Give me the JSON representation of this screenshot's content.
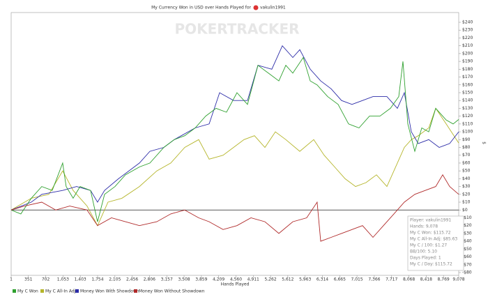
{
  "chart_data": {
    "type": "line",
    "title": "My Currency Won in USD over Hands Played for",
    "player_name": "vakulin1991",
    "watermark": "POKERTRACKER",
    "x_label": "Hands Played",
    "y_label": "$",
    "xlim": [
      1,
      9078
    ],
    "xticks": [
      1,
      351,
      702,
      {
        "value": 1053,
        "label": "1,053"
      },
      {
        "value": 1403,
        "label": "1,403"
      },
      {
        "value": 1754,
        "label": "1,754"
      },
      {
        "value": 2105,
        "label": "2,105"
      },
      {
        "value": 2456,
        "label": "2,456"
      },
      {
        "value": 2806,
        "label": "2,806"
      },
      {
        "value": 3157,
        "label": "3,157"
      },
      {
        "value": 3508,
        "label": "3,508"
      },
      {
        "value": 3859,
        "label": "3,859"
      },
      {
        "value": 4209,
        "label": "4,209"
      },
      {
        "value": 4560,
        "label": "4,560"
      },
      {
        "value": 4911,
        "label": "4,911"
      },
      {
        "value": 5262,
        "label": "5,262"
      },
      {
        "value": 5612,
        "label": "5,612"
      },
      {
        "value": 5963,
        "label": "5,963"
      },
      {
        "value": 6314,
        "label": "6,314"
      },
      {
        "value": 6665,
        "label": "6,665"
      },
      {
        "value": 7015,
        "label": "7,015"
      },
      {
        "value": 7366,
        "label": "7,366"
      },
      {
        "value": 7717,
        "label": "7,717"
      },
      {
        "value": 8068,
        "label": "8,068"
      },
      {
        "value": 8418,
        "label": "8,418"
      },
      {
        "value": 8769,
        "label": "8,769"
      },
      {
        "value": 9078,
        "label": "9,078"
      }
    ],
    "ylim": [
      -80,
      240
    ],
    "yticks": [
      {
        "value": -80,
        "label": "-$80"
      },
      {
        "value": -70,
        "label": "-$70"
      },
      {
        "value": -60,
        "label": "-$60"
      },
      {
        "value": -50,
        "label": "-$50"
      },
      {
        "value": -40,
        "label": "-$40"
      },
      {
        "value": -30,
        "label": "-$30"
      },
      {
        "value": -20,
        "label": "-$20"
      },
      {
        "value": -10,
        "label": "-$10"
      },
      {
        "value": 0,
        "label": "$0"
      },
      {
        "value": 10,
        "label": "$10"
      },
      {
        "value": 20,
        "label": "$20"
      },
      {
        "value": 30,
        "label": "$30"
      },
      {
        "value": 40,
        "label": "$40"
      },
      {
        "value": 50,
        "label": "$50"
      },
      {
        "value": 60,
        "label": "$60"
      },
      {
        "value": 70,
        "label": "$70"
      },
      {
        "value": 80,
        "label": "$80"
      },
      {
        "value": 90,
        "label": "$90"
      },
      {
        "value": 100,
        "label": "$100"
      },
      {
        "value": 110,
        "label": "$110"
      },
      {
        "value": 120,
        "label": "$120"
      },
      {
        "value": 130,
        "label": "$130"
      },
      {
        "value": 140,
        "label": "$140"
      },
      {
        "value": 150,
        "label": "$150"
      },
      {
        "value": 160,
        "label": "$160"
      },
      {
        "value": 170,
        "label": "$170"
      },
      {
        "value": 180,
        "label": "$180"
      },
      {
        "value": 190,
        "label": "$190"
      },
      {
        "value": 200,
        "label": "$200"
      },
      {
        "value": 210,
        "label": "$210"
      },
      {
        "value": 220,
        "label": "$220"
      },
      {
        "value": 230,
        "label": "$230"
      },
      {
        "value": 240,
        "label": "$240"
      }
    ],
    "series": [
      {
        "name": "My C Won",
        "color": "#2ea02e",
        "x": [
          1,
          198,
          410,
          622,
          834,
          1046,
          1117,
          1258,
          1400,
          1612,
          1753,
          1895,
          2107,
          2319,
          2602,
          2814,
          3097,
          3309,
          3521,
          3733,
          3945,
          4157,
          4369,
          4581,
          4794,
          5006,
          5218,
          5430,
          5571,
          5713,
          5925,
          6066,
          6207,
          6420,
          6632,
          6844,
          7056,
          7268,
          7480,
          7692,
          7862,
          7947,
          8046,
          8187,
          8329,
          8470,
          8611,
          8823,
          8965,
          9078
        ],
        "values": [
          0,
          -5,
          15,
          30,
          25,
          60,
          30,
          15,
          30,
          25,
          -15,
          20,
          30,
          45,
          55,
          60,
          80,
          90,
          95,
          105,
          120,
          130,
          125,
          150,
          135,
          185,
          175,
          165,
          185,
          175,
          195,
          165,
          160,
          145,
          135,
          110,
          105,
          120,
          120,
          130,
          145,
          190,
          110,
          75,
          105,
          100,
          130,
          115,
          110,
          115.72
        ]
      },
      {
        "name": "My C All-In Adj",
        "color": "#b5b52a",
        "x": [
          1,
          410,
          764,
          1046,
          1258,
          1541,
          1753,
          1965,
          2248,
          2602,
          2955,
          3238,
          3521,
          3804,
          4016,
          4299,
          4511,
          4723,
          4935,
          5147,
          5359,
          5571,
          5854,
          6137,
          6349,
          6561,
          6773,
          6985,
          7197,
          7409,
          7622,
          7834,
          7975,
          8116,
          8258,
          8470,
          8611,
          8823,
          9078
        ],
        "values": [
          0,
          15,
          20,
          50,
          25,
          5,
          -20,
          10,
          15,
          30,
          50,
          60,
          80,
          90,
          65,
          70,
          80,
          90,
          95,
          80,
          100,
          90,
          75,
          90,
          70,
          55,
          40,
          30,
          35,
          45,
          30,
          60,
          80,
          90,
          95,
          105,
          130,
          110,
          85.63
        ]
      },
      {
        "name": "Money Won With Showdown",
        "color": "#2c2ca8",
        "x": [
          1,
          410,
          622,
          1046,
          1329,
          1612,
          1753,
          1895,
          2178,
          2602,
          2814,
          3097,
          3309,
          3733,
          4016,
          4228,
          4511,
          4794,
          5006,
          5288,
          5501,
          5713,
          5854,
          6066,
          6278,
          6490,
          6702,
          6914,
          7127,
          7339,
          7622,
          7834,
          7975,
          8116,
          8258,
          8470,
          8682,
          8894,
          9078
        ],
        "values": [
          0,
          10,
          20,
          25,
          30,
          25,
          10,
          25,
          40,
          60,
          75,
          80,
          90,
          105,
          110,
          150,
          140,
          140,
          185,
          180,
          210,
          195,
          205,
          180,
          165,
          155,
          140,
          135,
          140,
          145,
          145,
          130,
          150,
          100,
          85,
          90,
          80,
          85,
          100
        ]
      },
      {
        "name": "Money Won Without Showdown",
        "color": "#b02a2a",
        "x": [
          1,
          269,
          622,
          905,
          1188,
          1541,
          1753,
          2036,
          2319,
          2602,
          2955,
          3238,
          3521,
          3804,
          4016,
          4299,
          4581,
          4864,
          5147,
          5430,
          5713,
          5995,
          6207,
          6278,
          6490,
          6702,
          6914,
          7127,
          7339,
          7551,
          7763,
          7975,
          8187,
          8399,
          8611,
          8753,
          8894,
          9078
        ],
        "values": [
          0,
          5,
          10,
          0,
          5,
          0,
          -20,
          -10,
          -15,
          -20,
          -15,
          -5,
          0,
          -10,
          -15,
          -25,
          -20,
          -10,
          -15,
          -30,
          -15,
          -10,
          10,
          -40,
          -35,
          -30,
          -25,
          -20,
          -35,
          -20,
          -5,
          10,
          20,
          25,
          30,
          45,
          30,
          20
        ]
      }
    ],
    "stats": [
      "Player: vakulin1991",
      "Hands: 9,078",
      "My C Won: $115.72",
      "My C All-In Adj: $85.63",
      "My C / 100: $1.27",
      "BB/100: 5.10",
      "Days Played: 1",
      "My C / Day: $115.72"
    ]
  }
}
